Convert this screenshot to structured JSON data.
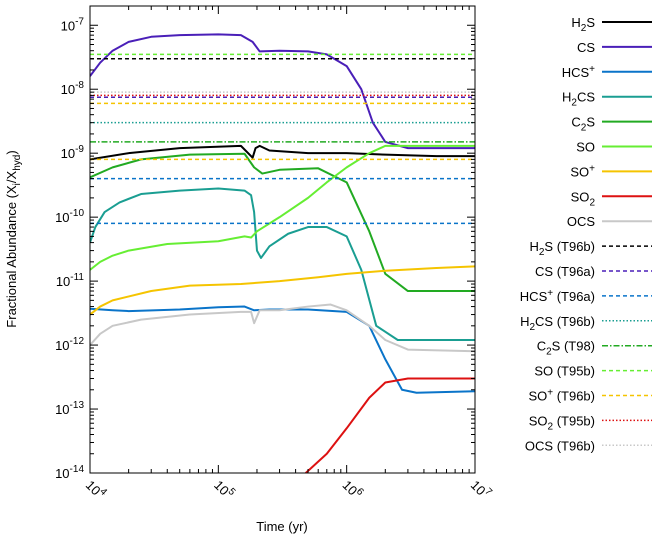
{
  "chart_data": {
    "type": "line",
    "xlabel": "Time (yr)",
    "ylabel": "Fractional Abundance (X",
    "ylabel_sub": "i",
    "ylabel_mid": "/X",
    "ylabel_sub2": "hyd",
    "ylabel_end": ")",
    "x_scale": "log",
    "y_scale": "log",
    "xlim": [
      10000,
      10000000
    ],
    "ylim": [
      1e-14,
      2e-07
    ],
    "x_ticks": [
      {
        "base": "10",
        "exp": "4",
        "value": 10000
      },
      {
        "base": "10",
        "exp": "5",
        "value": 100000
      },
      {
        "base": "10",
        "exp": "6",
        "value": 1000000
      },
      {
        "base": "10",
        "exp": "7",
        "value": 10000000
      }
    ],
    "y_ticks": [
      {
        "base": "10",
        "exp": "-7",
        "value": 1e-07
      },
      {
        "base": "10",
        "exp": "-8",
        "value": 1e-08
      },
      {
        "base": "10",
        "exp": "-9",
        "value": 1e-09
      },
      {
        "base": "10",
        "exp": "-10",
        "value": 1e-10
      },
      {
        "base": "10",
        "exp": "-11",
        "value": 1e-11
      },
      {
        "base": "10",
        "exp": "-12",
        "value": 1e-12
      },
      {
        "base": "10",
        "exp": "-13",
        "value": 1e-13
      },
      {
        "base": "10",
        "exp": "-14",
        "value": 1e-14
      }
    ],
    "grid": false,
    "legend_position": "right",
    "series": [
      {
        "name": "H2S",
        "label_parts": [
          [
            "H",
            ""
          ],
          [
            "2",
            "sub"
          ],
          [
            "S",
            ""
          ]
        ],
        "color": "#000000",
        "dash": "solid",
        "points": [
          [
            10000,
            8e-10
          ],
          [
            20000,
            1e-09
          ],
          [
            50000,
            1.2e-09
          ],
          [
            150000,
            1.3e-09
          ],
          [
            185000,
            8.5e-10
          ],
          [
            195000,
            1.2e-09
          ],
          [
            210000,
            1.3e-09
          ],
          [
            250000,
            1.1e-09
          ],
          [
            500000,
            1e-09
          ],
          [
            1000000,
            1e-09
          ],
          [
            2000000,
            9.5e-10
          ],
          [
            5000000,
            9e-10
          ],
          [
            10000000,
            9e-10
          ]
        ]
      },
      {
        "name": "CS",
        "label_parts": [
          [
            "CS",
            ""
          ]
        ],
        "color": "#4a1fb8",
        "dash": "solid",
        "points": [
          [
            10000,
            1.6e-08
          ],
          [
            12000,
            2.6e-08
          ],
          [
            15000,
            4e-08
          ],
          [
            20000,
            5.5e-08
          ],
          [
            30000,
            6.6e-08
          ],
          [
            50000,
            7e-08
          ],
          [
            100000,
            7.2e-08
          ],
          [
            150000,
            7e-08
          ],
          [
            185000,
            5.5e-08
          ],
          [
            210000,
            3.9e-08
          ],
          [
            300000,
            4e-08
          ],
          [
            500000,
            3.9e-08
          ],
          [
            700000,
            3.5e-08
          ],
          [
            1000000,
            2.3e-08
          ],
          [
            1300000,
            1e-08
          ],
          [
            1600000,
            3e-09
          ],
          [
            2000000,
            1.5e-09
          ],
          [
            3000000,
            1.2e-09
          ],
          [
            10000000,
            1.2e-09
          ]
        ]
      },
      {
        "name": "HCS+",
        "label_parts": [
          [
            "HCS",
            ""
          ],
          [
            "+",
            "sup"
          ]
        ],
        "color": "#0a74c9",
        "dash": "solid",
        "points": [
          [
            10000,
            3.7e-12
          ],
          [
            15000,
            3.5e-12
          ],
          [
            20000,
            3.4e-12
          ],
          [
            50000,
            3.6e-12
          ],
          [
            100000,
            3.9e-12
          ],
          [
            160000,
            4e-12
          ],
          [
            190000,
            3.5e-12
          ],
          [
            250000,
            3.6e-12
          ],
          [
            500000,
            3.6e-12
          ],
          [
            1000000,
            3.3e-12
          ],
          [
            1500000,
            2e-12
          ],
          [
            2000000,
            6e-13
          ],
          [
            2700000,
            2e-13
          ],
          [
            3500000,
            1.8e-13
          ],
          [
            10000000,
            1.9e-13
          ]
        ]
      },
      {
        "name": "H2CS",
        "label_parts": [
          [
            "H",
            ""
          ],
          [
            "2",
            "sub"
          ],
          [
            "CS",
            ""
          ]
        ],
        "color": "#1a9e92",
        "dash": "solid",
        "points": [
          [
            10000,
            4e-11
          ],
          [
            11000,
            7e-11
          ],
          [
            13000,
            1.2e-10
          ],
          [
            17000,
            1.7e-10
          ],
          [
            25000,
            2.3e-10
          ],
          [
            50000,
            2.6e-10
          ],
          [
            100000,
            2.8e-10
          ],
          [
            160000,
            2.6e-10
          ],
          [
            180000,
            2.2e-10
          ],
          [
            190000,
            1.2e-10
          ],
          [
            200000,
            3e-11
          ],
          [
            215000,
            2.3e-11
          ],
          [
            250000,
            3.5e-11
          ],
          [
            350000,
            5.5e-11
          ],
          [
            500000,
            7e-11
          ],
          [
            700000,
            7e-11
          ],
          [
            1000000,
            5e-11
          ],
          [
            1300000,
            1.5e-11
          ],
          [
            1700000,
            2e-12
          ],
          [
            2500000,
            1.2e-12
          ],
          [
            10000000,
            1.2e-12
          ]
        ]
      },
      {
        "name": "C2S",
        "label_parts": [
          [
            "C",
            ""
          ],
          [
            "2",
            "sub"
          ],
          [
            "S",
            ""
          ]
        ],
        "color": "#22aa22",
        "dash": "solid",
        "points": [
          [
            10000,
            4.2e-10
          ],
          [
            15000,
            6e-10
          ],
          [
            25000,
            8e-10
          ],
          [
            60000,
            9.5e-10
          ],
          [
            160000,
            9.8e-10
          ],
          [
            190000,
            6e-10
          ],
          [
            220000,
            4.8e-10
          ],
          [
            300000,
            5.5e-10
          ],
          [
            600000,
            5.8e-10
          ],
          [
            1000000,
            3.5e-10
          ],
          [
            1500000,
            6e-11
          ],
          [
            2000000,
            1.3e-11
          ],
          [
            3000000,
            7e-12
          ],
          [
            10000000,
            7e-12
          ]
        ]
      },
      {
        "name": "SO",
        "label_parts": [
          [
            "SO",
            ""
          ]
        ],
        "color": "#66ee33",
        "dash": "solid",
        "points": [
          [
            10000,
            1.5e-11
          ],
          [
            12000,
            2e-11
          ],
          [
            15000,
            2.5e-11
          ],
          [
            20000,
            3e-11
          ],
          [
            40000,
            3.8e-11
          ],
          [
            100000,
            4.2e-11
          ],
          [
            160000,
            5e-11
          ],
          [
            180000,
            4.8e-11
          ],
          [
            200000,
            6e-11
          ],
          [
            300000,
            1e-10
          ],
          [
            500000,
            2e-10
          ],
          [
            700000,
            3.5e-10
          ],
          [
            1000000,
            6e-10
          ],
          [
            1500000,
            1e-09
          ],
          [
            2000000,
            1.3e-09
          ],
          [
            3000000,
            1.3e-09
          ],
          [
            10000000,
            1.3e-09
          ]
        ]
      },
      {
        "name": "SO+",
        "label_parts": [
          [
            "SO",
            ""
          ],
          [
            "+",
            "sup"
          ]
        ],
        "color": "#f5c400",
        "dash": "solid",
        "points": [
          [
            10000,
            3e-12
          ],
          [
            12000,
            4e-12
          ],
          [
            15000,
            5e-12
          ],
          [
            30000,
            7e-12
          ],
          [
            60000,
            8.5e-12
          ],
          [
            150000,
            9e-12
          ],
          [
            300000,
            1e-11
          ],
          [
            600000,
            1.15e-11
          ],
          [
            1000000,
            1.3e-11
          ],
          [
            2000000,
            1.45e-11
          ],
          [
            5000000,
            1.6e-11
          ],
          [
            10000000,
            1.7e-11
          ]
        ]
      },
      {
        "name": "SO2",
        "label_parts": [
          [
            "SO",
            ""
          ],
          [
            "2",
            "sub"
          ]
        ],
        "color": "#dd1111",
        "dash": "solid",
        "points": [
          [
            480000,
            1e-14
          ],
          [
            700000,
            2e-14
          ],
          [
            1000000,
            5e-14
          ],
          [
            1500000,
            1.5e-13
          ],
          [
            2000000,
            2.6e-13
          ],
          [
            3000000,
            3e-13
          ],
          [
            10000000,
            3e-13
          ]
        ]
      },
      {
        "name": "OCS",
        "label_parts": [
          [
            "OCS",
            ""
          ]
        ],
        "color": "#c8c8c8",
        "dash": "solid",
        "points": [
          [
            10000,
            1e-12
          ],
          [
            12000,
            1.5e-12
          ],
          [
            15000,
            2e-12
          ],
          [
            25000,
            2.5e-12
          ],
          [
            60000,
            3e-12
          ],
          [
            150000,
            3.3e-12
          ],
          [
            180000,
            3.3e-12
          ],
          [
            190000,
            2.2e-12
          ],
          [
            210000,
            3.5e-12
          ],
          [
            300000,
            3.5e-12
          ],
          [
            500000,
            4e-12
          ],
          [
            750000,
            4.3e-12
          ],
          [
            1000000,
            3.5e-12
          ],
          [
            1500000,
            2e-12
          ],
          [
            2000000,
            1.2e-12
          ],
          [
            3000000,
            8.5e-13
          ],
          [
            10000000,
            8e-13
          ]
        ]
      },
      {
        "name": "H2S (T96b)",
        "label_parts": [
          [
            "H",
            ""
          ],
          [
            "2",
            "sub"
          ],
          [
            "S (T96b)",
            ""
          ]
        ],
        "color": "#000000",
        "dash": "4,3",
        "constant": 3e-08
      },
      {
        "name": "CS (T96a)",
        "label_parts": [
          [
            "CS (T96a)",
            ""
          ]
        ],
        "color": "#4a1fb8",
        "dash": "4,3",
        "constant": 7.5e-09
      },
      {
        "name": "HCS+ (T96a)",
        "label_parts": [
          [
            "HCS",
            ""
          ],
          [
            "+",
            "sup"
          ],
          [
            " (T96a)",
            ""
          ]
        ],
        "color": "#0a74c9",
        "dash": "4,3",
        "constant": 4e-10,
        "constant2": 8e-11
      },
      {
        "name": "H2CS (T96b)",
        "label_parts": [
          [
            "H",
            ""
          ],
          [
            "2",
            "sub"
          ],
          [
            "CS (T96b)",
            ""
          ]
        ],
        "color": "#1a9e92",
        "dash": "1.5,2",
        "constant": 3e-09
      },
      {
        "name": "C2S (T98)",
        "label_parts": [
          [
            "C",
            ""
          ],
          [
            "2",
            "sub"
          ],
          [
            "S (T98)",
            ""
          ]
        ],
        "color": "#22aa22",
        "dash": "6,2,1.5,2",
        "constant": 1.5e-09
      },
      {
        "name": "SO (T95b)",
        "label_parts": [
          [
            "SO (T95b)",
            ""
          ]
        ],
        "color": "#66ee33",
        "dash": "4,3",
        "constant": 3.5e-08
      },
      {
        "name": "SO+ (T96b)",
        "label_parts": [
          [
            "SO",
            ""
          ],
          [
            "+",
            "sup"
          ],
          [
            " (T96b)",
            ""
          ]
        ],
        "color": "#f5c400",
        "dash": "4,3",
        "constant": 6e-09,
        "constant2": 8e-10
      },
      {
        "name": "SO2 (T95b)",
        "label_parts": [
          [
            "SO",
            ""
          ],
          [
            "2",
            "sub"
          ],
          [
            " (T95b)",
            ""
          ]
        ],
        "color": "#dd1111",
        "dash": "1.5,2",
        "constant": 8e-09
      },
      {
        "name": "OCS (T96b)",
        "label_parts": [
          [
            "OCS (T96b)",
            ""
          ]
        ],
        "color": "#c8c8c8",
        "dash": "1.5,2",
        "constant": 9e-09
      }
    ]
  }
}
